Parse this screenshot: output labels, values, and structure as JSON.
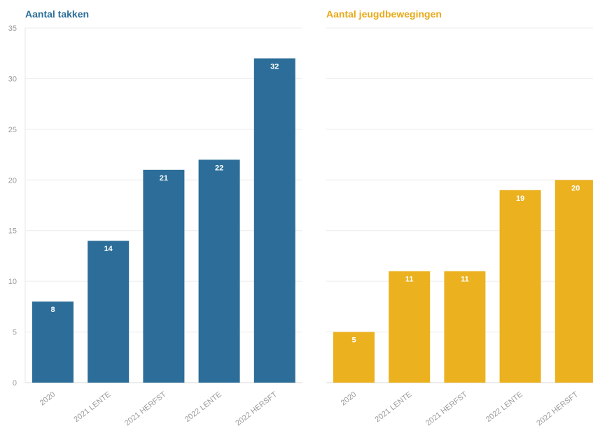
{
  "chart_data": [
    {
      "type": "bar",
      "title": "Aantal takken",
      "categories": [
        "2020",
        "2021 LENTE",
        "2021 HERFST",
        "2022 LENTE",
        "2022 HERSFT"
      ],
      "values": [
        8,
        14,
        21,
        22,
        32
      ],
      "ylim": [
        0,
        35
      ],
      "yticks": [
        "0",
        "5",
        "10",
        "15",
        "20",
        "25",
        "30",
        "35"
      ],
      "show_yaxis_labels": true,
      "grid": true,
      "color": "#2c6e99",
      "title_color": "#2c6e99"
    },
    {
      "type": "bar",
      "title": "Aantal jeugdbewegingen",
      "categories": [
        "2020",
        "2021 LENTE",
        "2021 HERFST",
        "2022 LENTE",
        "2022 HERSFT"
      ],
      "values": [
        5,
        11,
        11,
        19,
        20
      ],
      "ylim": [
        0,
        35
      ],
      "show_yaxis_labels": false,
      "grid": true,
      "color": "#ebb11f",
      "title_color": "#e8a91a"
    }
  ]
}
